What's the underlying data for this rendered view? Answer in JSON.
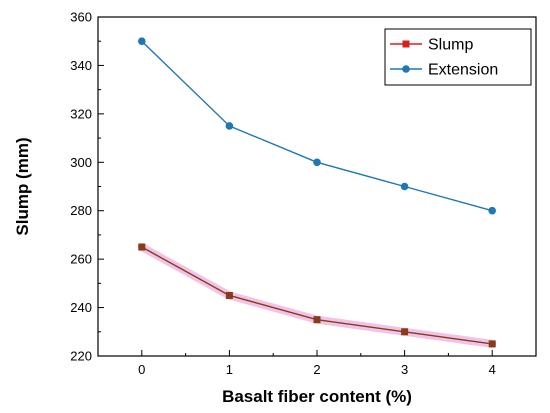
{
  "chart_data": {
    "type": "line",
    "title": "",
    "xlabel": "Basalt fiber content (%)",
    "ylabel": "Slump (mm)",
    "x": [
      0,
      1,
      2,
      3,
      4
    ],
    "x_tick_labels": [
      "0",
      "1",
      "2",
      "3",
      "4"
    ],
    "xlim": [
      -0.5,
      4.5
    ],
    "ylim": [
      220,
      360
    ],
    "y_ticks": [
      220,
      240,
      260,
      280,
      300,
      320,
      340,
      360
    ],
    "y_tick_labels": [
      "220",
      "240",
      "260",
      "280",
      "300",
      "320",
      "340",
      "360"
    ],
    "grid": false,
    "legend_position": "top-right",
    "series": [
      {
        "name": "Slump",
        "values": [
          265,
          245,
          235,
          230,
          225
        ],
        "color": "#8b3a1a",
        "legend_marker_color": "#d42020",
        "halo_color": "#f0c4e8",
        "marker": "square"
      },
      {
        "name": "Extension",
        "values": [
          350,
          315,
          300,
          290,
          280
        ],
        "color": "#1f77b4",
        "marker": "circle"
      }
    ]
  }
}
